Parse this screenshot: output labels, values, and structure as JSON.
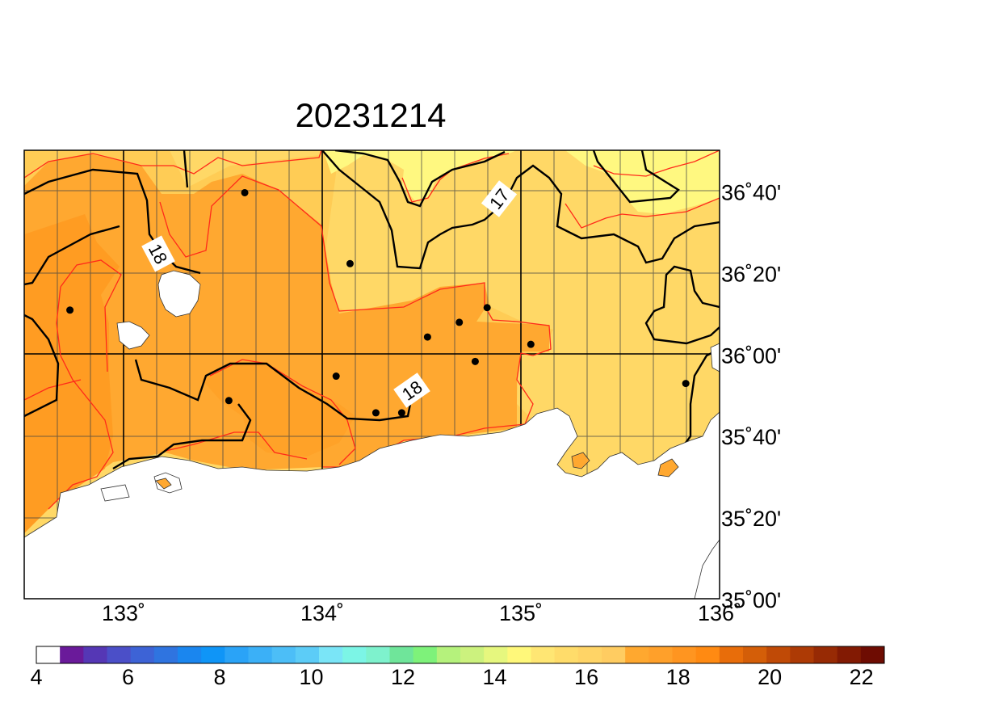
{
  "title": "20231214",
  "map": {
    "lon_ticks": [
      {
        "value": 133,
        "label": "133˚"
      },
      {
        "value": 134,
        "label": "134˚"
      },
      {
        "value": 135,
        "label": "135˚"
      },
      {
        "value": 136,
        "label": "136˚"
      }
    ],
    "lat_ticks": [
      {
        "value": 36.6667,
        "label": "36˚40'"
      },
      {
        "value": 36.3333,
        "label": "36˚20'"
      },
      {
        "value": 36.0,
        "label": "36˚00'"
      },
      {
        "value": 35.6667,
        "label": "35˚40'"
      },
      {
        "value": 35.3333,
        "label": "35˚20'"
      },
      {
        "value": 35.0,
        "label": "35˚00'"
      }
    ],
    "contour_labels": [
      "18",
      "17",
      "18"
    ],
    "stations": [
      {
        "lon": 132.73,
        "lat": 36.18
      },
      {
        "lon": 133.53,
        "lat": 35.81
      },
      {
        "lon": 133.61,
        "lat": 36.66
      },
      {
        "lon": 134.14,
        "lat": 36.37
      },
      {
        "lon": 134.07,
        "lat": 35.91
      },
      {
        "lon": 134.27,
        "lat": 35.76
      },
      {
        "lon": 134.4,
        "lat": 35.76
      },
      {
        "lon": 134.53,
        "lat": 36.07
      },
      {
        "lon": 134.69,
        "lat": 36.13
      },
      {
        "lon": 134.77,
        "lat": 35.97
      },
      {
        "lon": 134.83,
        "lat": 36.19
      },
      {
        "lon": 135.05,
        "lat": 36.04
      },
      {
        "lon": 135.83,
        "lat": 35.88
      }
    ]
  },
  "colorbar": {
    "labels": [
      "4",
      "6",
      "8",
      "10",
      "12",
      "14",
      "16",
      "18",
      "20",
      "22"
    ],
    "colors": [
      "#ffffff",
      "#6a1a9a",
      "#5537b5",
      "#4b4fc8",
      "#3d63d6",
      "#2f74e0",
      "#1a86ef",
      "#0f95f7",
      "#2aa3f7",
      "#3bb0f7",
      "#4cbef7",
      "#5cccf7",
      "#7ae5f7",
      "#7cf5e6",
      "#7ef2cd",
      "#6fe59a",
      "#7ef27a",
      "#b5f27c",
      "#ccf27e",
      "#e6f77e",
      "#fff87a",
      "#ffe673",
      "#ffdc6a",
      "#ffd466",
      "#ffcc61",
      "#ffa82f",
      "#ffa02a",
      "#ff9520",
      "#ff8a12",
      "#e86d0a",
      "#d45e08",
      "#c04a06",
      "#ad3a05",
      "#972a04",
      "#821a03",
      "#6e0c02"
    ]
  },
  "chart_data": {
    "type": "heatmap",
    "title": "20231214",
    "x_range": [
      132.5,
      136.0
    ],
    "y_range": [
      35.0,
      36.8333
    ],
    "x_ticks": [
      "133˚",
      "134˚",
      "135˚",
      "136˚"
    ],
    "y_ticks": [
      "36˚40'",
      "36˚20'",
      "36˚00'",
      "35˚40'",
      "35˚20'",
      "35˚00'"
    ],
    "colorbar_range": [
      4,
      22.5
    ],
    "colorbar_ticks": [
      4,
      6,
      8,
      10,
      12,
      14,
      16,
      18,
      20,
      22
    ],
    "contours": [
      17,
      18
    ],
    "grid": true
  }
}
